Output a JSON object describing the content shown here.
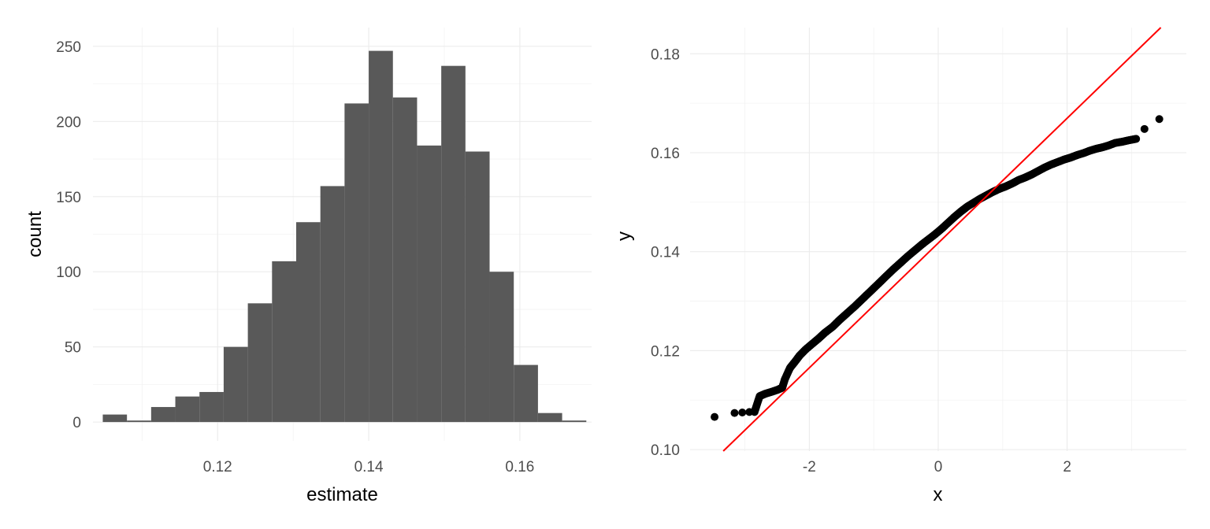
{
  "colors": {
    "bar_fill": "#595959",
    "point_fill": "#000000",
    "reference_line": "#ff0000",
    "grid": "#ebebeb",
    "tick_text": "#4d4d4d"
  },
  "chart_data": [
    {
      "type": "bar",
      "xlabel": "estimate",
      "ylabel": "count",
      "xlim": [
        0.1035,
        0.1695
      ],
      "ylim": [
        -12.5,
        262.5
      ],
      "x_ticks": [
        0.12,
        0.14,
        0.16
      ],
      "x_tick_labels": [
        "0.12",
        "0.14",
        "0.16"
      ],
      "y_ticks": [
        0,
        50,
        100,
        150,
        200,
        250
      ],
      "y_tick_labels": [
        "0",
        "50",
        "100",
        "150",
        "200",
        "250"
      ],
      "grid": true,
      "bin_width": 0.0032,
      "bin_centers": [
        0.1064,
        0.1096,
        0.1128,
        0.116,
        0.1192,
        0.1224,
        0.1256,
        0.1288,
        0.132,
        0.1352,
        0.1384,
        0.1416,
        0.1448,
        0.148,
        0.1512,
        0.1544,
        0.1576,
        0.1608,
        0.164,
        0.1672
      ],
      "values": [
        5,
        1,
        10,
        17,
        20,
        50,
        79,
        107,
        133,
        157,
        212,
        247,
        216,
        184,
        237,
        180,
        100,
        38,
        6,
        1
      ]
    },
    {
      "type": "scatter",
      "xlabel": "x",
      "ylabel": "y",
      "xlim": [
        -3.85,
        3.85
      ],
      "ylim": [
        0.0997,
        0.1853
      ],
      "x_ticks": [
        -2,
        0,
        2
      ],
      "x_tick_labels": [
        "-2",
        "0",
        "2"
      ],
      "y_ticks": [
        0.1,
        0.12,
        0.14,
        0.16,
        0.18
      ],
      "y_tick_labels": [
        "0.10",
        "0.12",
        "0.14",
        "0.16",
        "0.18"
      ],
      "grid": true,
      "reference_line": {
        "slope": 0.01261,
        "intercept": 0.14175
      },
      "points": [
        [
          -3.47,
          0.1066
        ],
        [
          -3.16,
          0.1074
        ],
        [
          -3.04,
          0.1075
        ],
        [
          -2.93,
          0.1076
        ],
        [
          -2.85,
          0.1076
        ],
        [
          -2.77,
          0.1108
        ],
        [
          -2.68,
          0.1113
        ],
        [
          -2.58,
          0.1117
        ],
        [
          -2.49,
          0.1121
        ],
        [
          -2.42,
          0.1125
        ],
        [
          -2.38,
          0.1142
        ],
        [
          -2.3,
          0.1165
        ],
        [
          -2.22,
          0.1178
        ],
        [
          -2.15,
          0.119
        ],
        [
          -2.06,
          0.1202
        ],
        [
          -1.97,
          0.1212
        ],
        [
          -1.86,
          0.1224
        ],
        [
          -1.76,
          0.1236
        ],
        [
          -1.64,
          0.1248
        ],
        [
          -1.53,
          0.1262
        ],
        [
          -1.41,
          0.1276
        ],
        [
          -1.29,
          0.129
        ],
        [
          -1.17,
          0.1305
        ],
        [
          -1.05,
          0.132
        ],
        [
          -0.93,
          0.1335
        ],
        [
          -0.82,
          0.1349
        ],
        [
          -0.7,
          0.1364
        ],
        [
          -0.58,
          0.1378
        ],
        [
          -0.47,
          0.1391
        ],
        [
          -0.36,
          0.1403
        ],
        [
          -0.25,
          0.1415
        ],
        [
          -0.15,
          0.1425
        ],
        [
          -0.05,
          0.1435
        ],
        [
          0.05,
          0.1446
        ],
        [
          0.15,
          0.1458
        ],
        [
          0.25,
          0.147
        ],
        [
          0.35,
          0.1481
        ],
        [
          0.45,
          0.1491
        ],
        [
          0.55,
          0.1499
        ],
        [
          0.65,
          0.1507
        ],
        [
          0.75,
          0.1514
        ],
        [
          0.85,
          0.1521
        ],
        [
          0.95,
          0.1527
        ],
        [
          1.05,
          0.1532
        ],
        [
          1.15,
          0.1538
        ],
        [
          1.25,
          0.1545
        ],
        [
          1.35,
          0.155
        ],
        [
          1.45,
          0.1556
        ],
        [
          1.55,
          0.1563
        ],
        [
          1.65,
          0.157
        ],
        [
          1.75,
          0.1576
        ],
        [
          1.85,
          0.1581
        ],
        [
          1.95,
          0.1586
        ],
        [
          2.05,
          0.159
        ],
        [
          2.15,
          0.1595
        ],
        [
          2.25,
          0.1599
        ],
        [
          2.35,
          0.1604
        ],
        [
          2.45,
          0.1608
        ],
        [
          2.55,
          0.1611
        ],
        [
          2.65,
          0.1615
        ],
        [
          2.75,
          0.162
        ],
        [
          2.85,
          0.1622
        ],
        [
          2.95,
          0.1625
        ],
        [
          3.07,
          0.1628
        ],
        [
          3.2,
          0.1648
        ],
        [
          3.43,
          0.1668
        ]
      ]
    }
  ]
}
